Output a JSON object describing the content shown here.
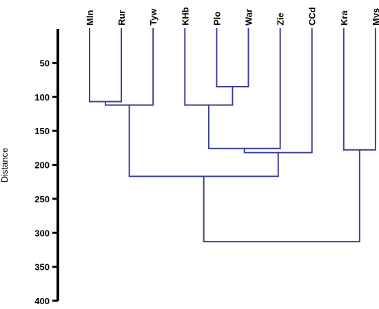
{
  "figure": {
    "axis_label": "Distance",
    "colors": {
      "branch": "#3a3f98",
      "axis": "#000000"
    }
  },
  "chart_data": {
    "type": "dendrogram",
    "ylabel": "Distance",
    "ylim": [
      0,
      400
    ],
    "yticks": [
      50,
      100,
      150,
      200,
      250,
      300,
      350,
      400
    ],
    "leaves": [
      "Mln",
      "Rur",
      "Tyw",
      "KHb",
      "Plo",
      "War",
      "Zie",
      "CCd",
      "Kra",
      "Mys"
    ],
    "merges": [
      {
        "left": "Plo",
        "right": "War",
        "height": 85
      },
      {
        "left": "Mln",
        "right": "Rur",
        "height": 107
      },
      {
        "left": "KHb",
        "right": "Plo+War",
        "height": 112
      },
      {
        "left": "Mln+Rur",
        "right": "Tyw",
        "height": 112
      },
      {
        "left": "KHb+Plo+War",
        "right": "Zie",
        "height": 176
      },
      {
        "left": "Kra",
        "right": "Mys",
        "height": 178
      },
      {
        "left": "KHb+Plo+War+Zie",
        "right": "CCd",
        "height": 182
      },
      {
        "left": "Mln+Rur+Tyw",
        "right": "KHb+Plo+War+Zie+CCd",
        "height": 217
      },
      {
        "left": "Mln+Rur+Tyw+KHb+Plo+War+Zie+CCd",
        "right": "Kra+Mys",
        "height": 313
      }
    ]
  }
}
